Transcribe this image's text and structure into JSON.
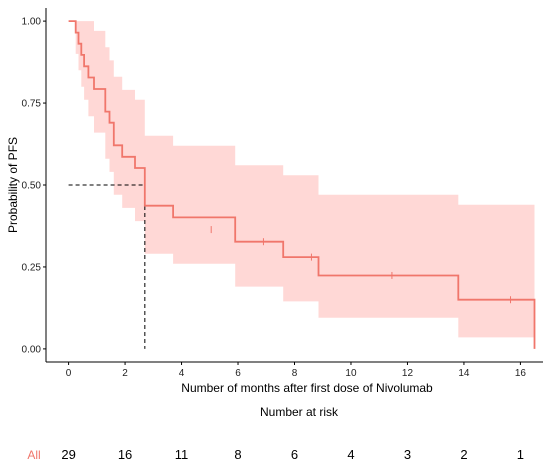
{
  "chart_data": {
    "type": "line",
    "subtype": "kaplan-meier",
    "xlabel": "Number of months after first dose of Nivolumab",
    "ylabel": "Probability of PFS",
    "xlim": [
      -0.8,
      16.8
    ],
    "ylim": [
      -0.04,
      1.04
    ],
    "x_ticks": [
      0,
      2,
      4,
      6,
      8,
      10,
      12,
      14,
      16
    ],
    "y_ticks": [
      0.0,
      0.25,
      0.5,
      0.75,
      1.0
    ],
    "y_tick_labels": [
      "0.00",
      "0.25",
      "0.50",
      "0.75",
      "1.00"
    ],
    "grid": false,
    "legend": "none",
    "colors": {
      "curve": "#f0766b",
      "ci_band": "#ffd8d6",
      "median_line": "#000000",
      "axis": "#000000"
    },
    "series": [
      {
        "strata": "All",
        "times": [
          0,
          0.25,
          0.35,
          0.45,
          0.55,
          0.7,
          0.9,
          1.3,
          1.45,
          1.6,
          1.9,
          2.35,
          2.7,
          3.7,
          5.9,
          7.6,
          8.85,
          13.8,
          16.5
        ],
        "survival": [
          1.0,
          0.965,
          0.931,
          0.897,
          0.862,
          0.828,
          0.793,
          0.724,
          0.69,
          0.621,
          0.586,
          0.552,
          0.437,
          0.401,
          0.327,
          0.28,
          0.224,
          0.15,
          0.0
        ],
        "ci_lower": [
          1.0,
          0.9,
          0.85,
          0.8,
          0.76,
          0.71,
          0.66,
          0.58,
          0.54,
          0.47,
          0.43,
          0.39,
          0.29,
          0.26,
          0.19,
          0.145,
          0.095,
          0.035,
          0.035
        ],
        "ci_upper": [
          1.0,
          1.0,
          1.0,
          1.0,
          1.0,
          1.0,
          0.97,
          0.92,
          0.88,
          0.83,
          0.79,
          0.76,
          0.65,
          0.62,
          0.56,
          0.53,
          0.47,
          0.44,
          0.44
        ],
        "censored": [
          {
            "time": 5.05,
            "survival": 0.364
          },
          {
            "time": 6.9,
            "survival": 0.327
          },
          {
            "time": 8.6,
            "survival": 0.28
          },
          {
            "time": 11.45,
            "survival": 0.224
          },
          {
            "time": 15.65,
            "survival": 0.15
          }
        ]
      }
    ],
    "median": {
      "time": 2.7,
      "survival": 0.5
    }
  },
  "risk_table": {
    "title": "Number at risk",
    "strata_label": "All",
    "times": [
      0,
      2,
      4,
      6,
      8,
      10,
      12,
      14,
      16
    ],
    "counts": [
      "29",
      "16",
      "11",
      "8",
      "6",
      "4",
      "3",
      "2",
      "1"
    ]
  }
}
